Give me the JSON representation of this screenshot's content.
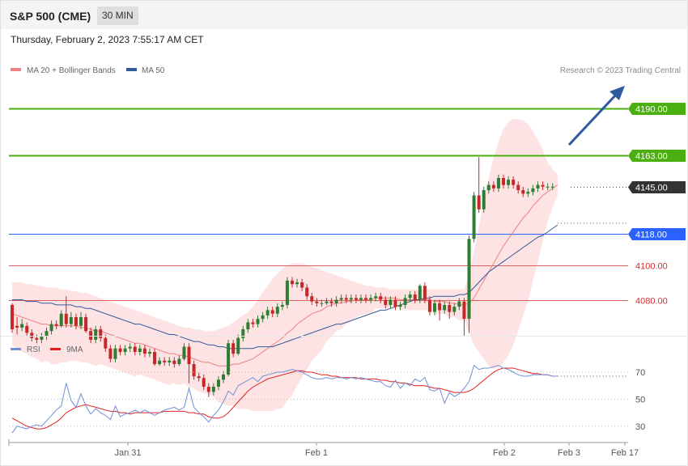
{
  "header": {
    "title": "S&P 500 (CME)",
    "interval": "30 MIN",
    "datetime": "Thursday, February 2, 2023 7:55:17 AM CET"
  },
  "legend": {
    "ma20": "MA 20 + Bollinger Bands",
    "ma50": "MA 50",
    "credit": "Research © 2023 Trading Central",
    "rsi": "RSI",
    "rsi_ma": "9MA"
  },
  "colors": {
    "up": "#2e7d32",
    "down": "#c62828",
    "ma20": "#f08080",
    "ma50": "#34599a",
    "band_fill": "#fde3e3",
    "target": "#4caf10",
    "pivot": "#2962ff",
    "support": "#e06060",
    "last": "#333333",
    "arrow": "#2e5aa0",
    "rsi": "#6f8fd8",
    "rsi_ma": "#e02020"
  },
  "chart_data": {
    "type": "candlestick",
    "price_range": [
      4060,
      4200
    ],
    "levels": [
      {
        "value": 4190,
        "label": "4190.00",
        "kind": "target"
      },
      {
        "value": 4163,
        "label": "4163.00",
        "kind": "target"
      },
      {
        "value": 4145,
        "label": "4145.00",
        "kind": "last"
      },
      {
        "value": 4118,
        "label": "4118.00",
        "kind": "pivot"
      },
      {
        "value": 4100,
        "label": "4100.00",
        "kind": "support"
      },
      {
        "value": 4080,
        "label": "4080.00",
        "kind": "support"
      }
    ],
    "x_labels": [
      "Jan 31",
      "Feb 1",
      "Feb 2",
      "Feb 3",
      "Feb 17"
    ],
    "candles": [
      [
        4077,
        4063,
        4078,
        4061
      ],
      [
        4065,
        4064,
        4070,
        4060
      ],
      [
        4064,
        4066,
        4069,
        4062
      ],
      [
        4065,
        4061,
        4067,
        4059
      ],
      [
        4061,
        4058,
        4063,
        4056
      ],
      [
        4058,
        4057,
        4060,
        4055
      ],
      [
        4057,
        4059,
        4061,
        4055
      ],
      [
        4059,
        4062,
        4064,
        4057
      ],
      [
        4062,
        4066,
        4068,
        4060
      ],
      [
        4066,
        4065,
        4068,
        4063
      ],
      [
        4065,
        4072,
        4074,
        4064
      ],
      [
        4072,
        4066,
        4082,
        4064
      ],
      [
        4066,
        4070,
        4073,
        4064
      ],
      [
        4070,
        4065,
        4072,
        4063
      ],
      [
        4065,
        4070,
        4073,
        4063
      ],
      [
        4070,
        4062,
        4072,
        4061
      ],
      [
        4062,
        4057,
        4064,
        4055
      ],
      [
        4057,
        4063,
        4065,
        4055
      ],
      [
        4063,
        4058,
        4065,
        4056
      ],
      [
        4058,
        4052,
        4060,
        4050
      ],
      [
        4052,
        4046,
        4054,
        4044
      ],
      [
        4046,
        4052,
        4054,
        4044
      ],
      [
        4052,
        4050,
        4054,
        4048
      ],
      [
        4050,
        4052,
        4054,
        4048
      ],
      [
        4052,
        4053,
        4055,
        4050
      ],
      [
        4053,
        4050,
        4055,
        4048
      ],
      [
        4050,
        4052,
        4054,
        4048
      ],
      [
        4052,
        4049,
        4054,
        4047
      ],
      [
        4049,
        4050,
        4052,
        4047
      ],
      [
        4050,
        4043,
        4052,
        4042
      ],
      [
        4043,
        4045,
        4047,
        4042
      ],
      [
        4045,
        4044,
        4047,
        4042
      ],
      [
        4044,
        4045,
        4047,
        4042
      ],
      [
        4045,
        4043,
        4047,
        4041
      ],
      [
        4043,
        4046,
        4048,
        4042
      ],
      [
        4046,
        4053,
        4055,
        4045
      ],
      [
        4053,
        4043,
        4055,
        4032
      ],
      [
        4043,
        4036,
        4045,
        4034
      ],
      [
        4036,
        4035,
        4038,
        4033
      ],
      [
        4035,
        4030,
        4037,
        4028
      ],
      [
        4030,
        4027,
        4032,
        4024
      ],
      [
        4027,
        4030,
        4032,
        4025
      ],
      [
        4030,
        4034,
        4036,
        4028
      ],
      [
        4034,
        4037,
        4039,
        4032
      ],
      [
        4037,
        4055,
        4057,
        4036
      ],
      [
        4055,
        4049,
        4057,
        4047
      ],
      [
        4049,
        4058,
        4060,
        4048
      ],
      [
        4058,
        4063,
        4065,
        4056
      ],
      [
        4063,
        4067,
        4069,
        4061
      ],
      [
        4067,
        4066,
        4069,
        4064
      ],
      [
        4066,
        4069,
        4071,
        4064
      ],
      [
        4069,
        4071,
        4073,
        4067
      ],
      [
        4071,
        4074,
        4076,
        4069
      ],
      [
        4074,
        4072,
        4076,
        4070
      ],
      [
        4072,
        4076,
        4078,
        4070
      ],
      [
        4076,
        4077,
        4079,
        4074
      ],
      [
        4077,
        4091,
        4093,
        4075
      ],
      [
        4091,
        4089,
        4093,
        4087
      ],
      [
        4089,
        4090,
        4092,
        4087
      ],
      [
        4090,
        4087,
        4092,
        4085
      ],
      [
        4087,
        4082,
        4089,
        4080
      ],
      [
        4082,
        4079,
        4084,
        4077
      ],
      [
        4079,
        4078,
        4081,
        4076
      ],
      [
        4078,
        4078,
        4080,
        4076
      ],
      [
        4078,
        4079,
        4081,
        4077
      ],
      [
        4079,
        4078,
        4081,
        4076
      ],
      [
        4078,
        4080,
        4082,
        4076
      ],
      [
        4080,
        4081,
        4083,
        4078
      ],
      [
        4081,
        4080,
        4083,
        4078
      ],
      [
        4080,
        4081,
        4083,
        4078
      ],
      [
        4081,
        4080,
        4083,
        4078
      ],
      [
        4080,
        4081,
        4083,
        4078
      ],
      [
        4081,
        4080,
        4083,
        4078
      ],
      [
        4080,
        4081,
        4083,
        4078
      ],
      [
        4081,
        4082,
        4084,
        4079
      ],
      [
        4082,
        4080,
        4084,
        4078
      ],
      [
        4080,
        4077,
        4082,
        4075
      ],
      [
        4077,
        4080,
        4082,
        4075
      ],
      [
        4080,
        4076,
        4082,
        4074
      ],
      [
        4076,
        4077,
        4079,
        4074
      ],
      [
        4077,
        4081,
        4083,
        4075
      ],
      [
        4081,
        4083,
        4085,
        4079
      ],
      [
        4083,
        4080,
        4085,
        4078
      ],
      [
        4080,
        4088,
        4089,
        4078
      ],
      [
        4088,
        4080,
        4090,
        4078
      ],
      [
        4080,
        4073,
        4082,
        4071
      ],
      [
        4073,
        4078,
        4080,
        4071
      ],
      [
        4078,
        4074,
        4080,
        4068
      ],
      [
        4074,
        4077,
        4079,
        4072
      ],
      [
        4077,
        4073,
        4079,
        4069
      ],
      [
        4073,
        4076,
        4078,
        4071
      ],
      [
        4076,
        4079,
        4081,
        4074
      ],
      [
        4079,
        4069,
        4081,
        4059
      ],
      [
        4069,
        4115,
        4117,
        4061
      ],
      [
        4115,
        4140,
        4142,
        4113
      ],
      [
        4140,
        4132,
        4162,
        4130
      ],
      [
        4132,
        4143,
        4145,
        4130
      ],
      [
        4143,
        4146,
        4148,
        4141
      ],
      [
        4146,
        4144,
        4148,
        4142
      ],
      [
        4144,
        4150,
        4152,
        4142
      ],
      [
        4150,
        4146,
        4152,
        4144
      ],
      [
        4146,
        4149,
        4151,
        4144
      ],
      [
        4149,
        4146,
        4151,
        4144
      ],
      [
        4146,
        4143,
        4148,
        4141
      ],
      [
        4143,
        4141,
        4145,
        4139
      ],
      [
        4141,
        4142,
        4144,
        4139
      ],
      [
        4142,
        4144,
        4146,
        4140
      ],
      [
        4144,
        4146,
        4148,
        4142
      ],
      [
        4146,
        4145,
        4148,
        4143
      ],
      [
        4145,
        4145,
        4147,
        4143
      ],
      [
        4145,
        4145,
        4147,
        4143
      ]
    ],
    "ma20": [
      4072,
      4071,
      4070,
      4069,
      4068,
      4067,
      4066,
      4066,
      4065,
      4065,
      4065,
      4065,
      4065,
      4065,
      4064,
      4064,
      4063,
      4062,
      4062,
      4061,
      4060,
      4059,
      4058,
      4057,
      4056,
      4055,
      4055,
      4054,
      4053,
      4052,
      4051,
      4050,
      4049,
      4049,
      4048,
      4048,
      4047,
      4046,
      4045,
      4044,
      4044,
      4043,
      4042,
      4042,
      4042,
      4043,
      4043,
      4044,
      4045,
      4046,
      4048,
      4050,
      4052,
      4054,
      4056,
      4058,
      4061,
      4063,
      4066,
      4068,
      4070,
      4072,
      4073,
      4074,
      4076,
      4077,
      4078,
      4078,
      4079,
      4079,
      4080,
      4080,
      4080,
      4080,
      4081,
      4081,
      4081,
      4081,
      4081,
      4080,
      4080,
      4080,
      4080,
      4080,
      4080,
      4080,
      4079,
      4079,
      4079,
      4078,
      4078,
      4077,
      4077,
      4078,
      4081,
      4086,
      4091,
      4096,
      4101,
      4106,
      4111,
      4115,
      4119,
      4123,
      4127,
      4130,
      4134,
      4137,
      4140,
      4142,
      4144,
      4146
    ],
    "bb_upper": [
      4090,
      4090,
      4090,
      4089,
      4089,
      4088,
      4088,
      4087,
      4087,
      4087,
      4086,
      4086,
      4085,
      4085,
      4084,
      4084,
      4083,
      4082,
      4081,
      4080,
      4079,
      4078,
      4077,
      4076,
      4075,
      4074,
      4073,
      4072,
      4071,
      4070,
      4069,
      4068,
      4067,
      4066,
      4065,
      4064,
      4064,
      4063,
      4063,
      4062,
      4062,
      4062,
      4063,
      4064,
      4065,
      4067,
      4069,
      4071,
      4073,
      4076,
      4080,
      4084,
      4088,
      4092,
      4095,
      4098,
      4100,
      4101,
      4101,
      4101,
      4100,
      4099,
      4098,
      4097,
      4096,
      4095,
      4094,
      4093,
      4092,
      4091,
      4090,
      4089,
      4088,
      4088,
      4087,
      4087,
      4087,
      4086,
      4086,
      4086,
      4086,
      4086,
      4086,
      4086,
      4086,
      4086,
      4086,
      4086,
      4086,
      4086,
      4086,
      4086,
      4086,
      4095,
      4108,
      4122,
      4136,
      4150,
      4162,
      4171,
      4178,
      4182,
      4184,
      4184,
      4183,
      4181,
      4177,
      4172,
      4166,
      4159,
      4155,
      4152
    ],
    "bb_lower": [
      4054,
      4052,
      4050,
      4049,
      4047,
      4046,
      4044,
      4045,
      4043,
      4043,
      4044,
      4044,
      4045,
      4045,
      4044,
      4044,
      4043,
      4042,
      4043,
      4042,
      4041,
      4040,
      4039,
      4038,
      4037,
      4036,
      4037,
      4036,
      4035,
      4034,
      4033,
      4032,
      4031,
      4032,
      4031,
      4032,
      4030,
      4029,
      4027,
      4026,
      4026,
      4024,
      4021,
      4020,
      4019,
      4019,
      4017,
      4017,
      4017,
      4016,
      4016,
      4016,
      4016,
      4016,
      4017,
      4018,
      4022,
      4025,
      4031,
      4035,
      4040,
      4045,
      4048,
      4051,
      4056,
      4059,
      4062,
      4063,
      4066,
      4067,
      4070,
      4071,
      4072,
      4072,
      4075,
      4075,
      4075,
      4076,
      4076,
      4074,
      4074,
      4074,
      4074,
      4074,
      4074,
      4074,
      4072,
      4072,
      4072,
      4070,
      4070,
      4068,
      4068,
      4061,
      4054,
      4050,
      4046,
      4042,
      4040,
      4041,
      4044,
      4048,
      4054,
      4062,
      4071,
      4079,
      4091,
      4102,
      4114,
      4125,
      4133,
      4140
    ],
    "ma50": [
      4080,
      4080,
      4080,
      4079,
      4079,
      4079,
      4078,
      4078,
      4078,
      4077,
      4077,
      4077,
      4077,
      4076,
      4076,
      4075,
      4075,
      4074,
      4073,
      4072,
      4071,
      4070,
      4069,
      4068,
      4067,
      4066,
      4066,
      4065,
      4064,
      4063,
      4062,
      4061,
      4060,
      4060,
      4059,
      4058,
      4057,
      4056,
      4056,
      4055,
      4054,
      4054,
      4053,
      4053,
      4052,
      4052,
      4052,
      4052,
      4052,
      4052,
      4053,
      4053,
      4053,
      4053,
      4054,
      4055,
      4056,
      4057,
      4058,
      4059,
      4060,
      4061,
      4062,
      4063,
      4064,
      4065,
      4066,
      4066,
      4067,
      4068,
      4069,
      4070,
      4071,
      4072,
      4073,
      4074,
      4074,
      4075,
      4076,
      4077,
      4078,
      4079,
      4080,
      4080,
      4081,
      4081,
      4082,
      4082,
      4082,
      4082,
      4082,
      4083,
      4083,
      4084,
      4087,
      4090,
      4093,
      4096,
      4098,
      4100,
      4102,
      4104,
      4106,
      4108,
      4110,
      4112,
      4114,
      4116,
      4117,
      4119,
      4121,
      4123
    ],
    "ma50_projection": 4124,
    "rsi_levels": [
      70,
      50,
      30
    ],
    "rsi_range": [
      20,
      80
    ],
    "rsi": [
      25,
      30,
      29,
      28,
      30,
      31,
      30,
      34,
      38,
      42,
      45,
      62,
      49,
      44,
      54,
      45,
      39,
      43,
      40,
      38,
      35,
      45,
      37,
      39,
      40,
      42,
      40,
      42,
      40,
      38,
      40,
      42,
      43,
      44,
      42,
      44,
      58,
      44,
      40,
      37,
      33,
      38,
      42,
      48,
      56,
      53,
      60,
      62,
      64,
      66,
      63,
      67,
      68,
      69,
      70,
      70,
      71,
      72,
      71,
      70,
      68,
      66,
      65,
      65,
      66,
      65,
      66,
      66,
      65,
      66,
      65,
      66,
      65,
      64,
      63,
      63,
      60,
      59,
      64,
      58,
      62,
      60,
      65,
      63,
      66,
      57,
      56,
      58,
      47,
      55,
      52,
      54,
      58,
      63,
      75,
      72,
      73,
      73,
      74,
      75,
      73,
      72,
      70,
      68,
      67,
      67,
      68,
      68,
      68,
      68,
      67,
      67
    ],
    "rsi_ma": [
      36,
      34,
      32,
      30,
      29,
      28,
      28,
      29,
      31,
      33,
      36,
      40,
      42,
      44,
      45,
      46,
      45,
      44,
      43,
      42,
      41,
      41,
      40,
      40,
      39,
      40,
      40,
      40,
      40,
      40,
      40,
      41,
      41,
      41,
      41,
      41,
      40,
      40,
      39,
      39,
      37,
      36,
      36,
      37,
      40,
      44,
      48,
      52,
      56,
      59,
      61,
      63,
      65,
      66,
      67,
      68,
      69,
      70,
      71,
      71,
      70,
      70,
      69,
      68,
      68,
      67,
      67,
      66,
      66,
      66,
      66,
      65,
      65,
      65,
      65,
      64,
      64,
      63,
      63,
      62,
      62,
      61,
      60,
      60,
      60,
      59,
      58,
      58,
      57,
      56,
      55,
      55,
      55,
      56,
      58,
      61,
      64,
      67,
      70,
      72,
      73,
      73,
      73,
      72,
      71,
      70,
      69,
      69,
      68,
      68,
      67,
      67
    ]
  }
}
